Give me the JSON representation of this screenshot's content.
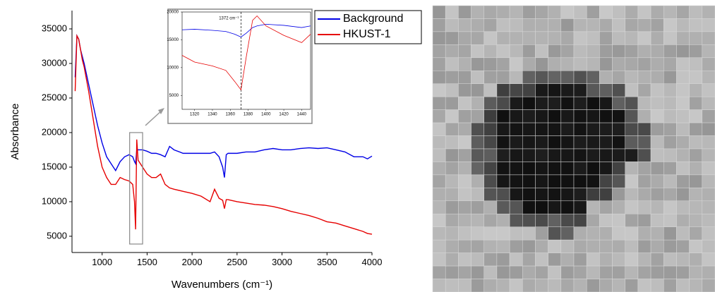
{
  "chart_data": [
    {
      "type": "line",
      "x_label": "Wavenumbers (cm⁻¹)",
      "y_label": "Absorbance",
      "xlim": [
        665,
        4000
      ],
      "ylim": [
        2650,
        37650
      ],
      "xticks": [
        1000,
        1500,
        2000,
        2500,
        3000,
        3500,
        4000
      ],
      "yticks": [
        5000,
        10000,
        15000,
        20000,
        25000,
        30000,
        35000
      ],
      "legend": "top-right",
      "x": [
        700,
        720,
        740,
        760,
        780,
        800,
        850,
        900,
        950,
        1000,
        1050,
        1100,
        1150,
        1200,
        1250,
        1300,
        1340,
        1360,
        1372,
        1385,
        1400,
        1450,
        1500,
        1550,
        1600,
        1650,
        1700,
        1750,
        1800,
        1900,
        2000,
        2100,
        2200,
        2250,
        2300,
        2340,
        2360,
        2380,
        2400,
        2500,
        2600,
        2700,
        2800,
        2900,
        3000,
        3100,
        3200,
        3300,
        3400,
        3500,
        3600,
        3700,
        3800,
        3900,
        3950,
        4000
      ],
      "series": [
        {
          "name": "Background",
          "color": "#0000e6",
          "values": [
            28000,
            34000,
            33500,
            32000,
            31000,
            30000,
            27000,
            24000,
            21000,
            18500,
            16500,
            15500,
            14500,
            15800,
            16500,
            16800,
            16500,
            15800,
            15500,
            17500,
            17500,
            17500,
            17300,
            17000,
            17000,
            16800,
            16500,
            18000,
            17500,
            17000,
            17000,
            17000,
            17000,
            17200,
            16500,
            15000,
            13500,
            16800,
            17000,
            17000,
            17200,
            17200,
            17500,
            17700,
            17500,
            17500,
            17700,
            17800,
            17700,
            17800,
            17500,
            17200,
            16500,
            16500,
            16200,
            16600
          ]
        },
        {
          "name": "HKUST-1",
          "color": "#e60000",
          "values": [
            26000,
            34000,
            33500,
            32000,
            30500,
            29500,
            26000,
            22000,
            18000,
            15000,
            13500,
            12500,
            12500,
            13500,
            13200,
            13000,
            12500,
            10000,
            6000,
            19000,
            16000,
            15000,
            14000,
            13500,
            13500,
            14000,
            12500,
            12000,
            11800,
            11500,
            11200,
            10800,
            10000,
            11800,
            10500,
            10200,
            9000,
            10300,
            10300,
            10000,
            9800,
            9600,
            9500,
            9300,
            9000,
            8600,
            8300,
            8000,
            7600,
            7100,
            6900,
            6500,
            6100,
            5700,
            5400,
            5300
          ]
        }
      ]
    },
    {
      "type": "line",
      "xlim": [
        1306,
        1450
      ],
      "ylim": [
        2500,
        20000
      ],
      "xticks": [
        1320,
        1340,
        1360,
        1380,
        1400,
        1420,
        1440
      ],
      "yticks": [
        5000,
        10000,
        15000,
        20000
      ],
      "annotations": [
        {
          "x": 1372,
          "text": "1372 cm⁻¹"
        }
      ],
      "x": [
        1306,
        1320,
        1340,
        1355,
        1365,
        1372,
        1378,
        1385,
        1390,
        1400,
        1420,
        1440,
        1450
      ],
      "series": [
        {
          "name": "Background",
          "color": "#0000e6",
          "values": [
            16800,
            16900,
            16700,
            16500,
            16000,
            15500,
            16200,
            17200,
            17500,
            17800,
            17600,
            17200,
            17500
          ]
        },
        {
          "name": "HKUST-1",
          "color": "#e60000",
          "values": [
            12200,
            11000,
            10300,
            9500,
            7500,
            6000,
            12000,
            18500,
            19300,
            17500,
            15800,
            14500,
            16000
          ]
        }
      ]
    }
  ]
}
